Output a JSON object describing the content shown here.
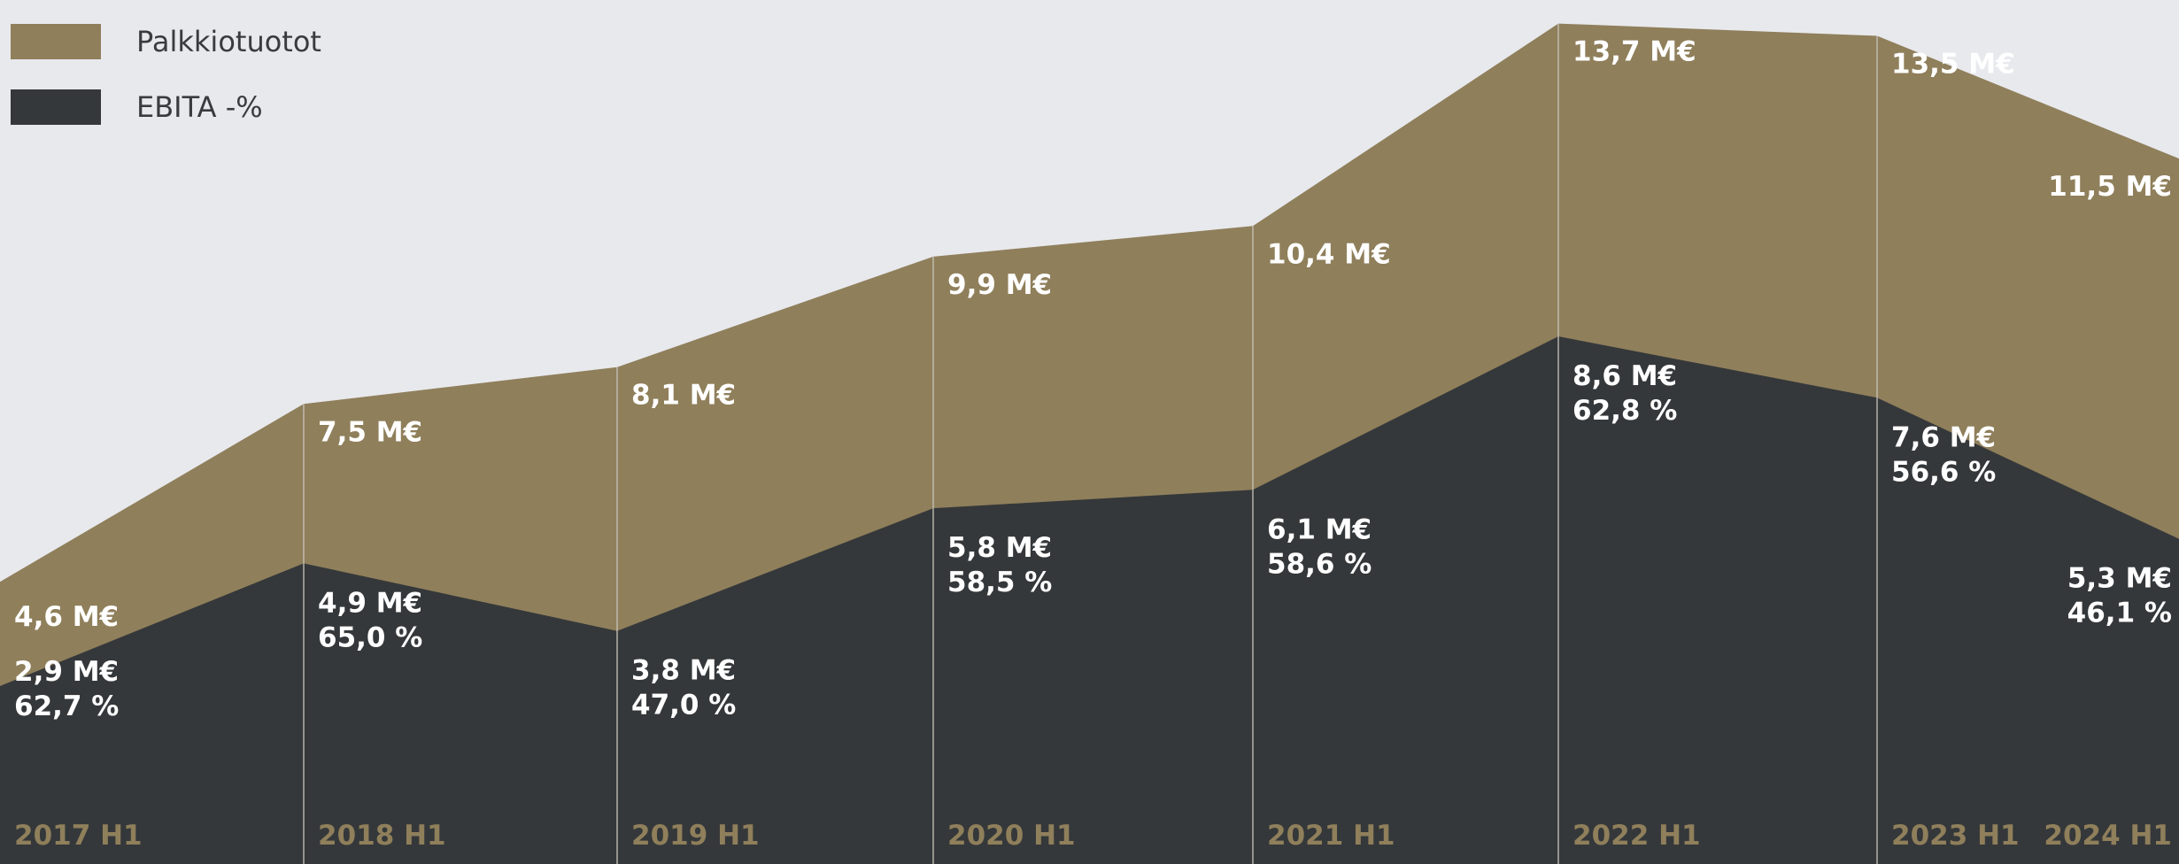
{
  "colors": {
    "background": "#e8e9ed",
    "palkkiotuotot": "#8f7f5b",
    "ebita": "#35383a",
    "divider": "#c9c5bd",
    "label": "#ffffff",
    "tick": "#8f7f5b"
  },
  "legend": {
    "items": [
      {
        "label": "Palkkiotuotot",
        "color": "#8f7f5b"
      },
      {
        "label": "EBITA -%",
        "color": "#35383a"
      }
    ]
  },
  "chart_data": {
    "type": "area",
    "categories": [
      "2017 H1",
      "2018 H1",
      "2019 H1",
      "2020 H1",
      "2021 H1",
      "2022 H1",
      "2023 H1",
      "2024 H1"
    ],
    "series": [
      {
        "name": "Palkkiotuotot",
        "values": [
          4.6,
          7.5,
          8.1,
          9.9,
          10.4,
          13.7,
          13.5,
          11.5
        ],
        "labels": [
          "4,6 M€",
          "7,5 M€",
          "8,1 M€",
          "9,9 M€",
          "10,4 M€",
          "13,7 M€",
          "13,5 M€",
          "11,5 M€"
        ]
      },
      {
        "name": "EBITA -%",
        "values": [
          2.9,
          4.9,
          3.8,
          5.8,
          6.1,
          8.6,
          7.6,
          5.3
        ],
        "labels": [
          "2,9 M€",
          "4,9 M€",
          "3,8 M€",
          "5,8 M€",
          "6,1 M€",
          "8,6 M€",
          "7,6 M€",
          "5,3 M€"
        ],
        "percent": [
          62.7,
          65.0,
          47.0,
          58.5,
          58.6,
          62.8,
          56.6,
          46.1
        ],
        "percent_labels": [
          "62,7 %",
          "65,0 %",
          "47,0 %",
          "58,5 %",
          "58,6 %",
          "62,8 %",
          "56,6 %",
          "46,1 %"
        ]
      }
    ],
    "ylim": [
      0,
      14
    ],
    "legend_position": "top-left",
    "grid": false
  }
}
